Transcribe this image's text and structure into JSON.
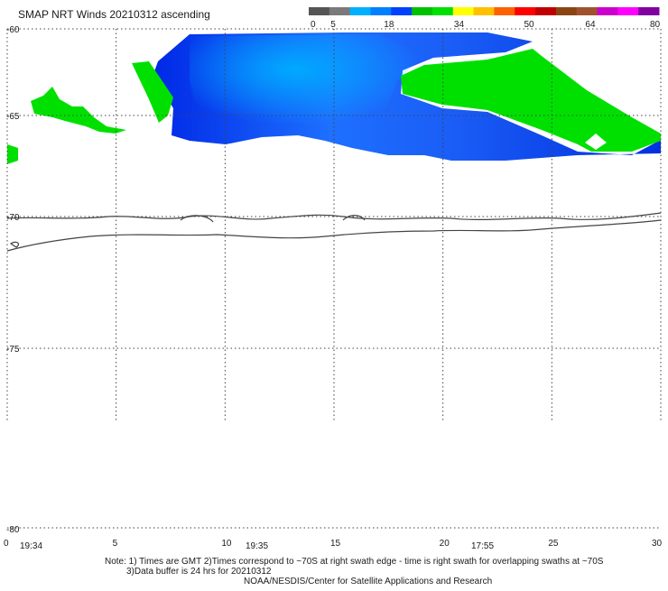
{
  "title": "SMAP NRT Winds 20210312 ascending",
  "colorbar": {
    "ticks": [
      "0",
      "5",
      "18",
      "34",
      "50",
      "64",
      "80"
    ],
    "colors": [
      "#555555",
      "#7a7a7a",
      "#00b0ff",
      "#0080ff",
      "#0040ff",
      "#00c000",
      "#00e000",
      "#ffff00",
      "#ffc000",
      "#ff6000",
      "#ff0000",
      "#c00000",
      "#8b4513",
      "#a0522d",
      "#cc00cc",
      "#ff00ff",
      "#8000a0"
    ]
  },
  "latitudes": [
    -60,
    -65,
    -70,
    -75,
    -80
  ],
  "lat_labels": [
    "-60",
    "-65",
    "-70",
    "-75",
    "-80"
  ],
  "longitudes": [
    0,
    5,
    10,
    15,
    20,
    25,
    30
  ],
  "lon_labels": [
    "0",
    "5",
    "10",
    "15",
    "20",
    "25",
    "30"
  ],
  "pass_times": [
    "19:34",
    "19:35",
    "17:55"
  ],
  "notes": {
    "line1": "Note: 1) Times are GMT 2)Times correspond to ~70S at right swath edge - time is right swath for overlapping swaths at ~70S",
    "line2": "3)Data buffer is 24 hrs for 20210312",
    "line3": "NOAA/NESDIS/Center for Satellite Applications and Research"
  },
  "wind_colors": {
    "light_blue": "#00a8ff",
    "blue": "#1f66ff",
    "dark_blue": "#0030e8",
    "green": "#00e000"
  }
}
